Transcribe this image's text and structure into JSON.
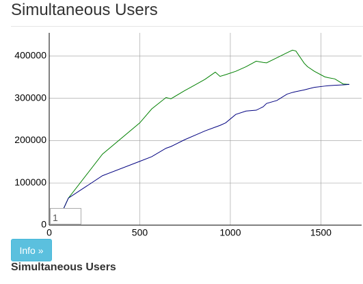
{
  "header": {
    "title": "Simultaneous Users"
  },
  "chart_data": {
    "type": "line",
    "x": [
      75,
      106,
      294,
      500,
      566,
      645,
      672,
      747,
      823,
      860,
      917,
      943,
      974,
      1030,
      1087,
      1143,
      1181,
      1200,
      1257,
      1313,
      1343,
      1362,
      1408,
      1426,
      1464,
      1521,
      1540,
      1577,
      1623,
      1657
    ],
    "series": [
      {
        "color": "#008000",
        "values": [
          35000,
          64000,
          168000,
          242000,
          275000,
          302000,
          299000,
          318000,
          336000,
          345000,
          362000,
          352000,
          356000,
          364000,
          375000,
          388000,
          385000,
          384000,
          396000,
          408000,
          414000,
          412000,
          383000,
          375000,
          364000,
          351000,
          349000,
          346000,
          334000,
          333000
        ]
      },
      {
        "color": "#000080",
        "values": [
          35000,
          64000,
          117000,
          151000,
          162000,
          182000,
          186000,
          202000,
          216000,
          223000,
          232000,
          236000,
          242000,
          262000,
          270000,
          272000,
          280000,
          288000,
          295000,
          310000,
          314000,
          316000,
          320000,
          322000,
          326000,
          329000,
          330000,
          331000,
          332000,
          333000
        ]
      }
    ],
    "xlim": [
      0,
      1657
    ],
    "xticks": [
      0,
      500,
      1000,
      1500
    ],
    "ylim": [
      0,
      455000
    ],
    "yticks": [
      0,
      100000,
      200000,
      300000,
      400000
    ],
    "grid": true
  },
  "roll_period": "1",
  "button": "Info »",
  "caption": "Simultaneous Users"
}
